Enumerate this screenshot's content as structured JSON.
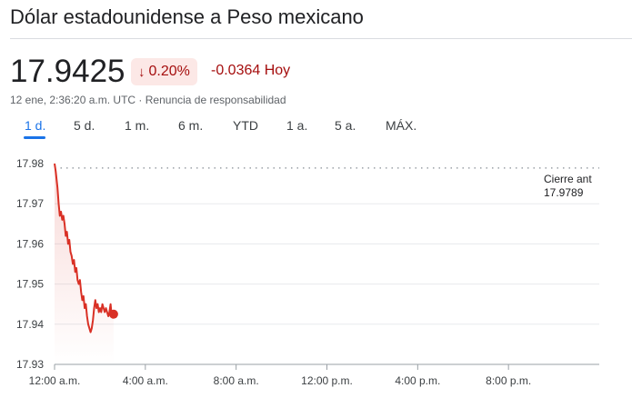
{
  "header": {
    "title": "Dólar estadounidense a Peso mexicano"
  },
  "quote": {
    "price": "17.9425",
    "change_percent": "0.20%",
    "change_arrow_icon": "arrow-down-icon",
    "change_value": "-0.0364 Hoy",
    "timestamp": "12 ene, 2:36:20 a.m. UTC · ",
    "disclaimer": "Renuncia de responsabilidad",
    "negative_color": "#a50e0e",
    "negative_bg": "#fce8e6"
  },
  "range_tabs": [
    "1 d.",
    "5 d.",
    "1 m.",
    "6 m.",
    "YTD",
    "1 a.",
    "5 a.",
    "MÁX."
  ],
  "selected_tab": "1 d.",
  "chart_data": {
    "type": "line",
    "series": [
      {
        "color": "#d93025",
        "points": [
          [
            0.0,
            17.98
          ],
          [
            0.02,
            17.978
          ],
          [
            0.05,
            17.974
          ],
          [
            0.07,
            17.97
          ],
          [
            0.09,
            17.967
          ],
          [
            0.11,
            17.968
          ],
          [
            0.13,
            17.966
          ],
          [
            0.15,
            17.967
          ],
          [
            0.17,
            17.965
          ],
          [
            0.19,
            17.962
          ],
          [
            0.21,
            17.963
          ],
          [
            0.23,
            17.96
          ],
          [
            0.25,
            17.961
          ],
          [
            0.27,
            17.958
          ],
          [
            0.29,
            17.957
          ],
          [
            0.31,
            17.955
          ],
          [
            0.33,
            17.956
          ],
          [
            0.35,
            17.953
          ],
          [
            0.37,
            17.954
          ],
          [
            0.39,
            17.951
          ],
          [
            0.41,
            17.95
          ],
          [
            0.43,
            17.951
          ],
          [
            0.45,
            17.948
          ],
          [
            0.47,
            17.946
          ],
          [
            0.49,
            17.947
          ],
          [
            0.51,
            17.944
          ],
          [
            0.53,
            17.945
          ],
          [
            0.55,
            17.942
          ],
          [
            0.57,
            17.94
          ],
          [
            0.59,
            17.939
          ],
          [
            0.61,
            17.938
          ],
          [
            0.63,
            17.939
          ],
          [
            0.65,
            17.941
          ],
          [
            0.67,
            17.944
          ],
          [
            0.69,
            17.946
          ],
          [
            0.71,
            17.944
          ],
          [
            0.73,
            17.945
          ],
          [
            0.75,
            17.943
          ],
          [
            0.77,
            17.944
          ],
          [
            0.79,
            17.943
          ],
          [
            0.81,
            17.945
          ],
          [
            0.83,
            17.944
          ],
          [
            0.85,
            17.943
          ],
          [
            0.87,
            17.944
          ],
          [
            0.89,
            17.943
          ],
          [
            0.91,
            17.942
          ],
          [
            0.93,
            17.943
          ],
          [
            0.95,
            17.945
          ],
          [
            0.97,
            17.942
          ],
          [
            1.0,
            17.9425
          ]
        ]
      }
    ],
    "current_point": [
      1.0,
      17.9425
    ],
    "previous_close_label": "Cierre ant",
    "previous_close_value": "17.9789",
    "previous_close": 17.9789,
    "ylim": [
      17.93,
      17.98
    ],
    "y_ticks": [
      "17.98",
      "17.97",
      "17.96",
      "17.95",
      "17.94",
      "17.93"
    ],
    "x_ticks": [
      "12:00 a.m.",
      "4:00 a.m.",
      "8:00 a.m.",
      "12:00 p.m.",
      "4:00 p.m.",
      "8:00 p.m."
    ],
    "x_unit_hours": [
      0,
      4,
      8,
      12,
      16,
      20
    ],
    "x_total_hours": 24,
    "data_end_hours": 2.6,
    "grid": true
  }
}
